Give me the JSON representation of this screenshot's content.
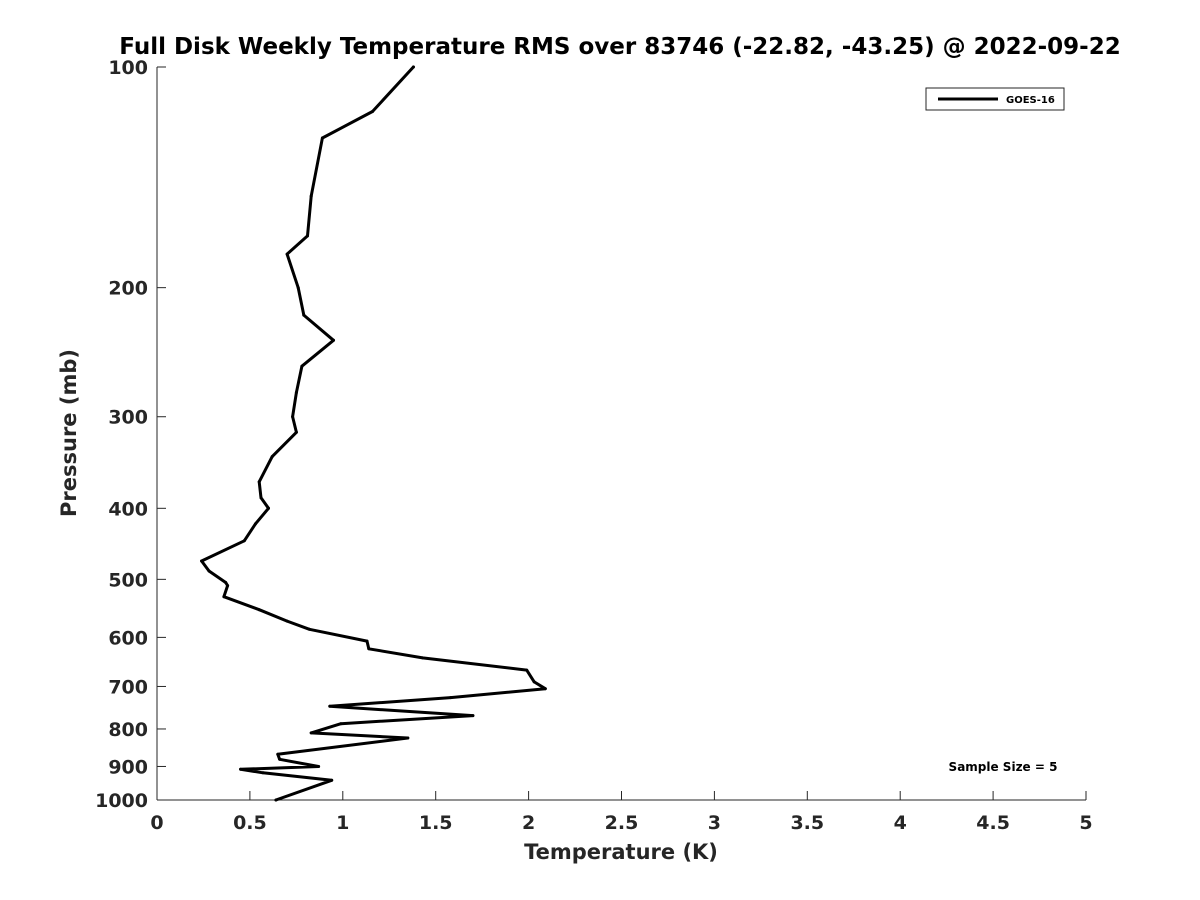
{
  "chart_data": {
    "type": "line",
    "title": "Full Disk Weekly Temperature RMS over 83746 (-22.82, -43.25) @ 2022-09-22",
    "xlabel": "Temperature (K)",
    "ylabel": "Pressure (mb)",
    "xlim": [
      0,
      5
    ],
    "ylim": [
      100,
      1000
    ],
    "y_scale": "log",
    "y_reversed": true,
    "x_ticks": [
      0,
      0.5,
      1,
      1.5,
      2,
      2.5,
      3,
      3.5,
      4,
      4.5,
      5
    ],
    "x_tick_labels": [
      "0",
      "0.5",
      "1",
      "1.5",
      "2",
      "2.5",
      "3",
      "3.5",
      "4",
      "4.5",
      "5"
    ],
    "y_ticks": [
      100,
      200,
      300,
      400,
      500,
      600,
      700,
      800,
      900,
      1000
    ],
    "y_tick_labels": [
      "100",
      "200",
      "300",
      "400",
      "500",
      "600",
      "700",
      "800",
      "900",
      "1000"
    ],
    "grid": false,
    "legend_position": "top-right",
    "annotation": "Sample Size = 5",
    "series": [
      {
        "name": "GOES-16",
        "color": "#000000",
        "points": [
          [
            1.38,
            100
          ],
          [
            1.16,
            115
          ],
          [
            0.89,
            125
          ],
          [
            0.83,
            150
          ],
          [
            0.81,
            170
          ],
          [
            0.7,
            180
          ],
          [
            0.76,
            200
          ],
          [
            0.79,
            218
          ],
          [
            0.95,
            236
          ],
          [
            0.78,
            256
          ],
          [
            0.75,
            278
          ],
          [
            0.73,
            300
          ],
          [
            0.75,
            315
          ],
          [
            0.62,
            340
          ],
          [
            0.55,
            368
          ],
          [
            0.56,
            387
          ],
          [
            0.6,
            400
          ],
          [
            0.53,
            420
          ],
          [
            0.47,
            443
          ],
          [
            0.24,
            472
          ],
          [
            0.28,
            487
          ],
          [
            0.37,
            505
          ],
          [
            0.38,
            510
          ],
          [
            0.36,
            528
          ],
          [
            0.55,
            550
          ],
          [
            0.7,
            570
          ],
          [
            0.82,
            585
          ],
          [
            1.13,
            607
          ],
          [
            1.14,
            622
          ],
          [
            1.43,
            640
          ],
          [
            1.99,
            665
          ],
          [
            2.03,
            690
          ],
          [
            2.09,
            705
          ],
          [
            1.58,
            725
          ],
          [
            0.93,
            745
          ],
          [
            1.7,
            767
          ],
          [
            0.99,
            787
          ],
          [
            0.83,
            810
          ],
          [
            1.35,
            823
          ],
          [
            0.65,
            866
          ],
          [
            0.66,
            880
          ],
          [
            0.87,
            900
          ],
          [
            0.45,
            908
          ],
          [
            0.57,
            918
          ],
          [
            0.94,
            940
          ],
          [
            0.64,
            1000
          ]
        ]
      }
    ]
  }
}
